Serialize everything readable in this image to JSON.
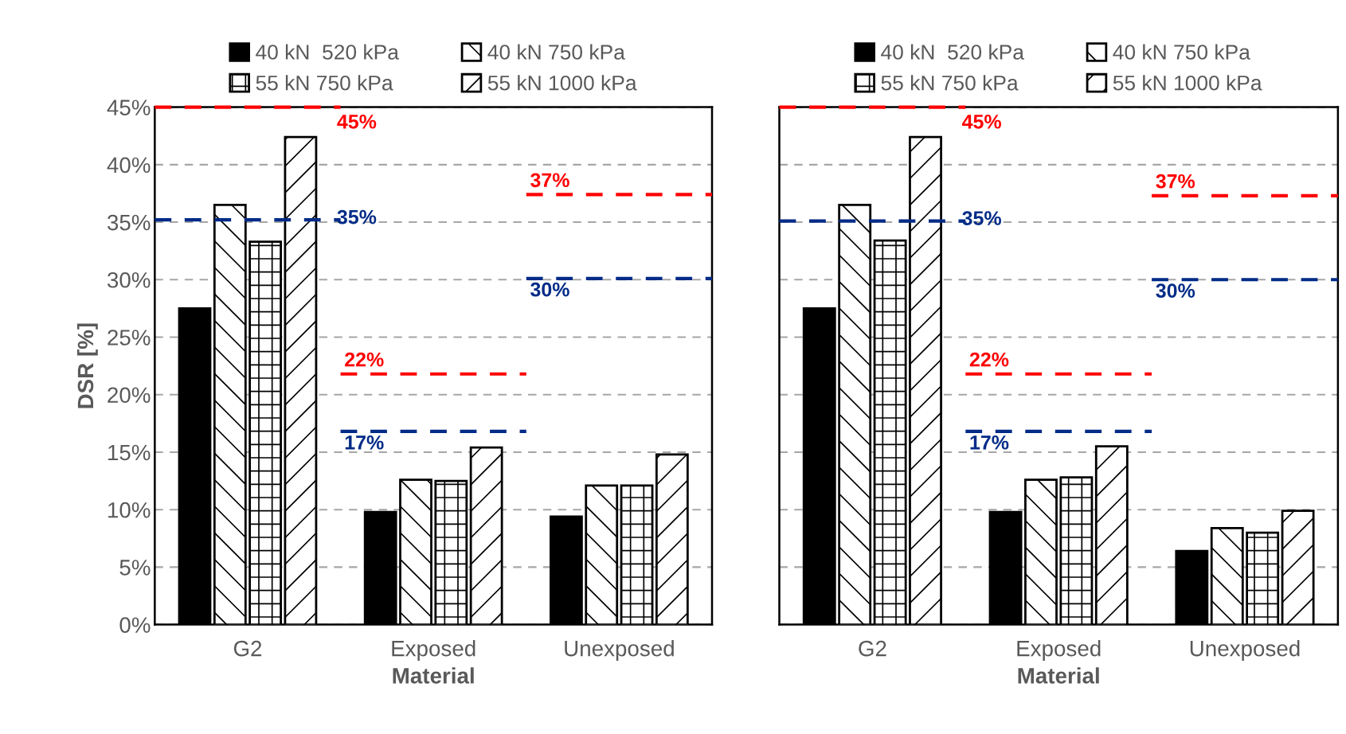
{
  "chart_data": [
    {
      "type": "bar",
      "xlabel": "Material",
      "ylabel": "DSR [%]",
      "categories": [
        "G2",
        "Exposed",
        "Unexposed"
      ],
      "series": [
        {
          "name": "40 kN  520 kPa",
          "color": "#000000",
          "values": [
            27.5,
            9.8,
            9.4
          ]
        },
        {
          "name": "40 kN 750 kPa",
          "color": "#000000",
          "values": [
            36.5,
            12.6,
            12.1
          ]
        },
        {
          "name": "55 kN 750 kPa",
          "color": "#000000",
          "values": [
            33.3,
            12.5,
            12.1
          ]
        },
        {
          "name": "55 kN 1000 kPa",
          "color": "#000000",
          "values": [
            42.4,
            15.4,
            14.8
          ]
        }
      ],
      "ylim": [
        0,
        45
      ],
      "yticks": [
        {
          "value": 0,
          "label": "0%"
        },
        {
          "value": 5,
          "label": "5%"
        },
        {
          "value": 10,
          "label": "10%"
        },
        {
          "value": 15,
          "label": "15%"
        },
        {
          "value": 20,
          "label": "20%"
        },
        {
          "value": 25,
          "label": "25%"
        },
        {
          "value": 30,
          "label": "30%"
        },
        {
          "value": 35,
          "label": "35%"
        },
        {
          "value": 40,
          "label": "40%"
        },
        {
          "value": 45,
          "label": "45%"
        }
      ],
      "ref_lines": [
        {
          "axis": "y",
          "value": 45,
          "label": "45%",
          "color": "#ff0000",
          "line_style": "dashed"
        },
        {
          "axis": "y",
          "value": 35.2,
          "label": "35%",
          "color": "#002b87",
          "line_style": "dashed"
        },
        {
          "axis": "y",
          "value": 21.8,
          "label": "22%",
          "color": "#ff0000",
          "line_style": "dashed"
        },
        {
          "axis": "y",
          "value": 16.8,
          "label": "17%",
          "color": "#002b87",
          "line_style": "dashed"
        },
        {
          "axis": "y",
          "value": 37.4,
          "label": "37%",
          "color": "#ff0000",
          "line_style": "dashed"
        },
        {
          "axis": "y",
          "value": 30.1,
          "label": "30%",
          "color": "#002b87",
          "line_style": "dashed"
        }
      ],
      "grid": "y",
      "legend": "top"
    },
    {
      "type": "bar",
      "xlabel": "Material",
      "categories": [
        "G2",
        "Exposed",
        "Unexposed"
      ],
      "series": [
        {
          "name": "40 kN  520 kPa",
          "color": "#000000",
          "values": [
            27.5,
            9.8,
            6.4
          ]
        },
        {
          "name": "40 kN 750 kPa",
          "color": "#000000",
          "values": [
            36.5,
            12.6,
            8.4
          ]
        },
        {
          "name": "55 kN 750 kPa",
          "color": "#000000",
          "values": [
            33.4,
            12.8,
            8.0
          ]
        },
        {
          "name": "55 kN 1000 kPa",
          "color": "#000000",
          "values": [
            42.4,
            15.5,
            9.9
          ]
        }
      ],
      "ylim": [
        0,
        45
      ],
      "yticks": [
        {
          "value": 0,
          "label": null
        },
        {
          "value": 5,
          "label": null
        },
        {
          "value": 10,
          "label": null
        },
        {
          "value": 15,
          "label": null
        },
        {
          "value": 20,
          "label": null
        },
        {
          "value": 25,
          "label": null
        },
        {
          "value": 30,
          "label": null
        },
        {
          "value": 35,
          "label": null
        },
        {
          "value": 40,
          "label": null
        },
        {
          "value": 45,
          "label": null
        }
      ],
      "tick_labels": "x",
      "ref_lines": [
        {
          "axis": "y",
          "value": 45,
          "label": "45%",
          "color": "#ff0000",
          "line_style": "dashed"
        },
        {
          "axis": "y",
          "value": 35.1,
          "label": "35%",
          "color": "#002b87",
          "line_style": "dashed"
        },
        {
          "axis": "y",
          "value": 21.8,
          "label": "22%",
          "color": "#ff0000",
          "line_style": "dashed"
        },
        {
          "axis": "y",
          "value": 16.8,
          "label": "17%",
          "color": "#002b87",
          "line_style": "dashed"
        },
        {
          "axis": "y",
          "value": 37.3,
          "label": "37%",
          "color": "#ff0000",
          "line_style": "dashed"
        },
        {
          "axis": "y",
          "value": 30.0,
          "label": "30%",
          "color": "#002b87",
          "line_style": "dashed"
        }
      ],
      "grid": "y",
      "legend": "top"
    }
  ]
}
